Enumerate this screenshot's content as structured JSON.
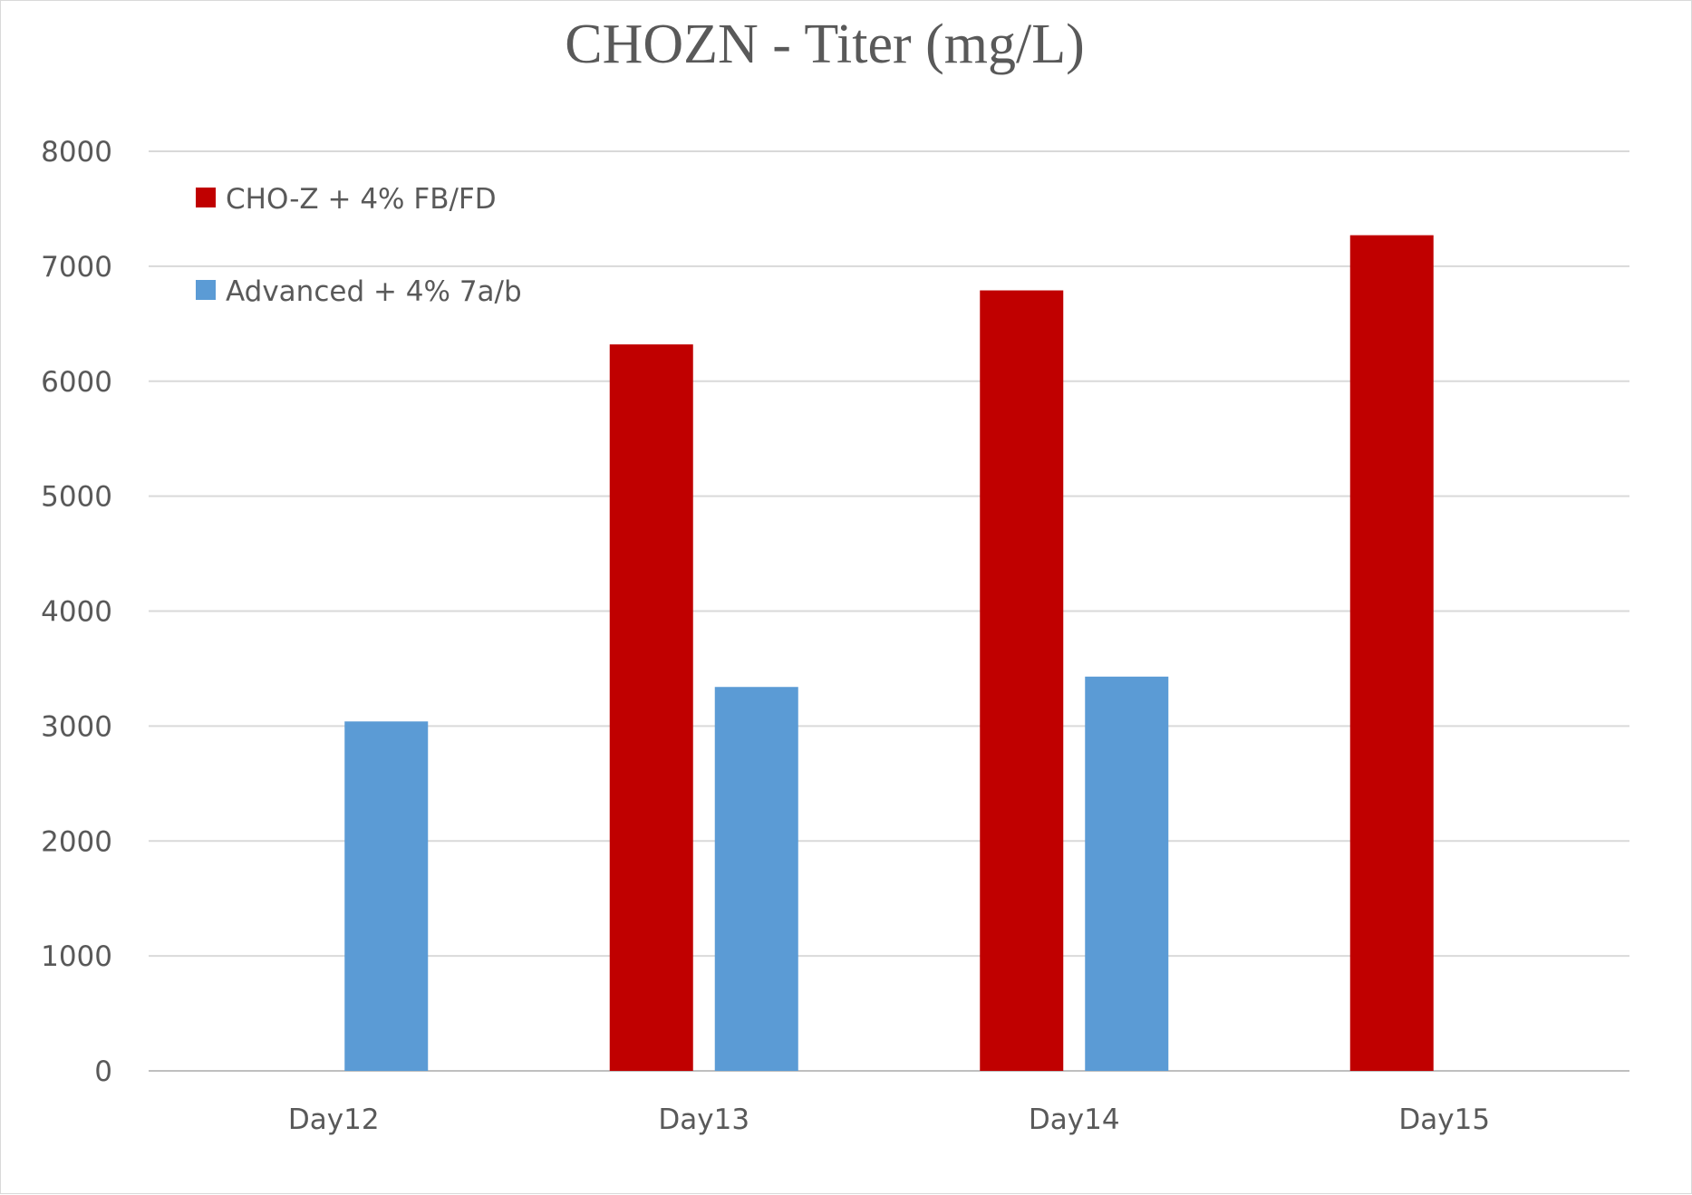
{
  "chart_data": {
    "type": "bar",
    "title": "CHOZN - Titer (mg/L)",
    "xlabel": "",
    "ylabel": "",
    "categories": [
      "Day12",
      "Day13",
      "Day14",
      "Day15"
    ],
    "series": [
      {
        "name": "CHO-Z + 4% FB/FD",
        "color": "#c00000",
        "values": [
          null,
          6320,
          6790,
          7270
        ]
      },
      {
        "name": "Advanced + 4% 7a/b",
        "color": "#5b9bd5",
        "values": [
          3040,
          3340,
          3430,
          null
        ]
      }
    ],
    "ylim": [
      0,
      8000
    ],
    "yticks": [
      0,
      1000,
      2000,
      3000,
      4000,
      5000,
      6000,
      7000,
      8000
    ],
    "grid": true,
    "legend_position": "top-left"
  }
}
